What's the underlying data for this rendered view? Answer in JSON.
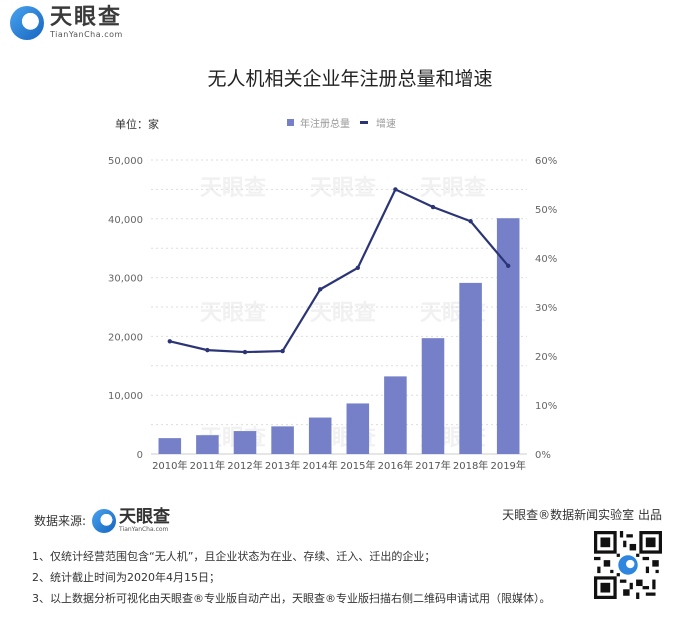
{
  "brand": {
    "name_cn": "天眼查",
    "name_en": "TianYanCha.com"
  },
  "header": {
    "title": "无人机相关企业年注册总量和增速"
  },
  "chart_meta": {
    "unit_label": "单位：家",
    "legend": [
      {
        "label": "年注册总量",
        "type": "bar",
        "color": "#7580c8"
      },
      {
        "label": "增速",
        "type": "line",
        "color": "#2b3576"
      }
    ],
    "watermark": "天眼查"
  },
  "chart_data": {
    "type": "bar",
    "title": "无人机相关企业年注册总量和增速",
    "categories": [
      "2010年",
      "2011年",
      "2012年",
      "2013年",
      "2014年",
      "2015年",
      "2016年",
      "2017年",
      "2018年",
      "2019年"
    ],
    "series": [
      {
        "name": "年注册总量",
        "type": "bar",
        "axis": "left",
        "color": "#7580c8",
        "values": [
          2700,
          3200,
          3900,
          4700,
          6200,
          8600,
          13200,
          19700,
          29100,
          40100
        ]
      },
      {
        "name": "增速",
        "type": "line",
        "axis": "right",
        "color": "#2b3576",
        "unit": "%",
        "values": [
          23.0,
          21.2,
          20.8,
          21.0,
          33.6,
          38.0,
          54.0,
          50.4,
          47.5,
          38.4
        ]
      }
    ],
    "xlabel": "",
    "ylabel": "单位：家",
    "ylim": [
      0,
      50000
    ],
    "y_ticks": [
      "0",
      "10,000",
      "20,000",
      "30,000",
      "40,000",
      "50,000"
    ],
    "y2lim": [
      0,
      60
    ],
    "y2_ticks": [
      "0%",
      "10%",
      "20%",
      "30%",
      "40%",
      "50%",
      "60%"
    ],
    "grid": true,
    "legend_position": "top"
  },
  "footer": {
    "source_label": "数据来源:",
    "credit": "天眼查®数据新闻实验室 出品",
    "notes": [
      "1、仅统计经营范围包含“无人机”，且企业状态为在业、存续、迁入、迁出的企业；",
      "2、统计截止时间为2020年4月15日；",
      "3、以上数据分析可视化由天眼查®专业版自动产出，天眼查®专业版扫描右侧二维码申请试用（限媒体）。"
    ]
  }
}
